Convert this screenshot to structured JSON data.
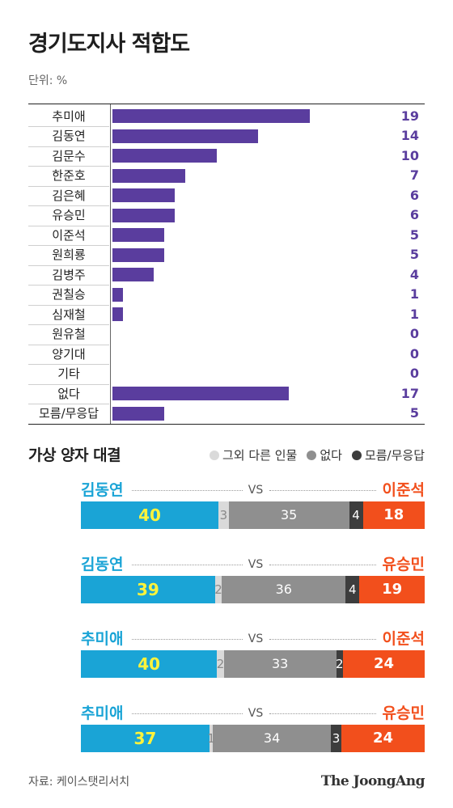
{
  "colors": {
    "bar": "#5a3d9e",
    "left": "#1aa4d6",
    "other": "#dadada",
    "none": "#8f8f8f",
    "dont_know": "#3d3d3d",
    "right": "#f24f1c",
    "left_value": "#fff33b"
  },
  "chart_data": [
    {
      "type": "bar",
      "orientation": "horizontal",
      "title": "경기도지사 적합도",
      "unit": "단위: %",
      "categories": [
        "추미애",
        "김동연",
        "김문수",
        "한준호",
        "김은혜",
        "유승민",
        "이준석",
        "원희룡",
        "김병주",
        "권칠승",
        "심재철",
        "원유철",
        "양기대",
        "기타",
        "없다",
        "모름/무응답"
      ],
      "values": [
        19,
        14,
        10,
        7,
        6,
        6,
        5,
        5,
        4,
        1,
        1,
        0,
        0,
        0,
        17,
        5
      ]
    },
    {
      "type": "bar",
      "orientation": "horizontal",
      "stacked": true,
      "title": "가상 양자 대결",
      "legend": [
        {
          "label": "그외 다른 인물",
          "color": "#dadada"
        },
        {
          "label": "없다",
          "color": "#8f8f8f"
        },
        {
          "label": "모름/무응답",
          "color": "#3d3d3d"
        }
      ],
      "vs_label": "VS",
      "matchups": [
        {
          "left_name": "김동연",
          "right_name": "이준석",
          "values": {
            "left": 40,
            "other": 3,
            "none": 35,
            "dont_know": 4,
            "right": 18
          }
        },
        {
          "left_name": "김동연",
          "right_name": "유승민",
          "values": {
            "left": 39,
            "other": 2,
            "none": 36,
            "dont_know": 4,
            "right": 19
          }
        },
        {
          "left_name": "추미애",
          "right_name": "이준석",
          "values": {
            "left": 40,
            "other": 2,
            "none": 33,
            "dont_know": 2,
            "right": 24
          }
        },
        {
          "left_name": "추미애",
          "right_name": "유승민",
          "values": {
            "left": 37,
            "other": 1,
            "none": 34,
            "dont_know": 3,
            "right": 24
          }
        }
      ]
    }
  ],
  "source": "자료: 케이스탯리서치",
  "logo": "The JoongAng"
}
